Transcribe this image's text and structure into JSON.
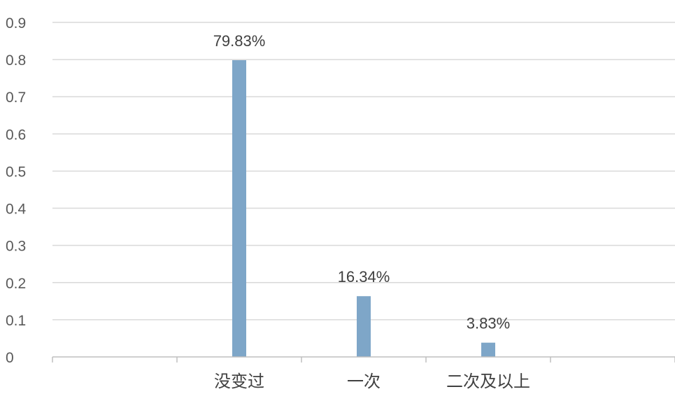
{
  "chart_data": {
    "type": "bar",
    "categories": [
      "",
      "没变过",
      "一次",
      "二次及以上",
      ""
    ],
    "values": [
      null,
      0.7983,
      0.1634,
      0.0383,
      null
    ],
    "data_labels": [
      "",
      "79.83%",
      "16.34%",
      "3.83%",
      ""
    ],
    "ylim": [
      0,
      0.9
    ],
    "yticks": [
      "0",
      "0.1",
      "0.2",
      "0.3",
      "0.4",
      "0.5",
      "0.6",
      "0.7",
      "0.8",
      "0.9"
    ],
    "grid": true,
    "colors": {
      "bar": "#7EA6C8",
      "grid": "#D9D9D9",
      "axis": "#BFBFBF"
    }
  }
}
